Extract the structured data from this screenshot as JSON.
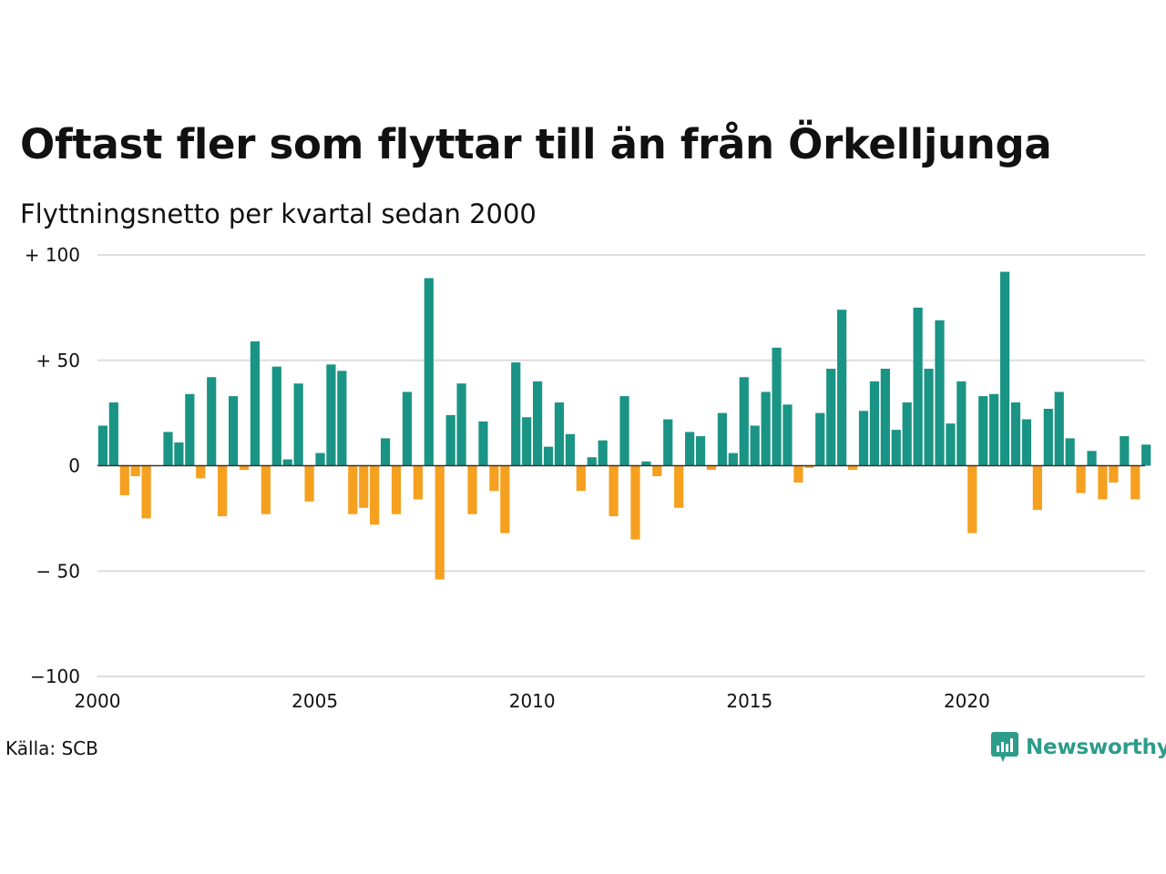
{
  "title": "Oftast fler som flyttar till än från Örkelljunga",
  "subtitle": "Flyttningsnetto per kvartal sedan 2000",
  "source": "Källa: SCB",
  "brand": {
    "name": "Newsworthy",
    "icon": "newsworthy-logo-icon"
  },
  "colors": {
    "positive": "#1a9484",
    "negative": "#f5a01f",
    "grid": "#dddddd",
    "zero_line": "#333333"
  },
  "chart_data": {
    "type": "bar",
    "start_year": 2000,
    "periods_per_year": 4,
    "ylim": [
      -100,
      100
    ],
    "y_ticks": [
      100,
      50,
      0,
      -50,
      -100
    ],
    "y_tick_labels": [
      "+ 100",
      "+  50",
      "0",
      "− 50",
      "−100"
    ],
    "x_ticks": [
      2000,
      2005,
      2010,
      2015,
      2020
    ],
    "x_tick_labels": [
      "2000",
      "2005",
      "2010",
      "2015",
      "2020"
    ],
    "grid": true,
    "xlabel": "",
    "ylabel": "",
    "values": [
      19,
      30,
      -14,
      -5,
      -25,
      0,
      16,
      11,
      34,
      -6,
      42,
      -24,
      33,
      -2,
      59,
      -23,
      47,
      3,
      39,
      -17,
      6,
      48,
      45,
      -23,
      -20,
      -28,
      13,
      -23,
      35,
      -16,
      89,
      -54,
      24,
      39,
      -23,
      21,
      -12,
      -32,
      49,
      23,
      40,
      9,
      30,
      15,
      -12,
      4,
      12,
      -24,
      33,
      -35,
      2,
      -5,
      22,
      -20,
      16,
      14,
      -2,
      25,
      6,
      42,
      19,
      35,
      56,
      29,
      -8,
      -1,
      25,
      46,
      74,
      -2,
      26,
      40,
      46,
      17,
      30,
      75,
      46,
      69,
      20,
      40,
      -32,
      33,
      34,
      92,
      30,
      22,
      -21,
      27,
      35,
      13,
      -13,
      7,
      -16,
      -8,
      14,
      -16,
      10
    ]
  }
}
